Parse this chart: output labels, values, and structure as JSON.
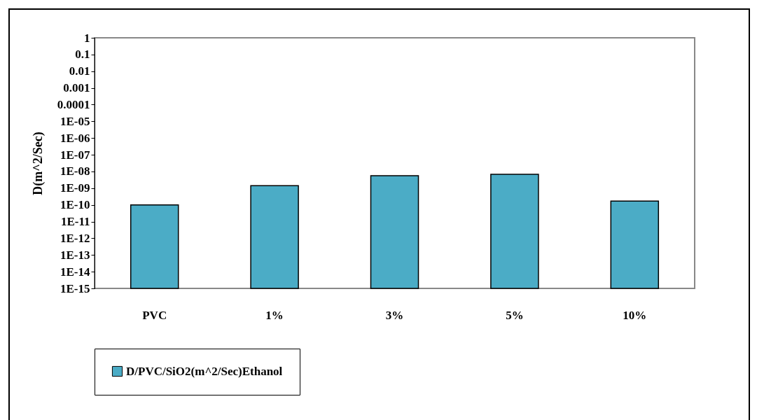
{
  "chart_data": {
    "type": "bar",
    "ylabel": "D(m^2/Sec)",
    "categories": [
      "PVC",
      "1%",
      "3%",
      "5%",
      "10%"
    ],
    "series": [
      {
        "name": "D/PVC/SiO2(m^2/Sec)Ethanol",
        "color": "#4bacc6",
        "values": [
          1e-10,
          1.4e-09,
          5.6e-09,
          6.8e-09,
          1.7e-10
        ]
      }
    ],
    "log": true,
    "ylim": [
      1e-15,
      1
    ],
    "yticks": [
      1,
      0.1,
      0.01,
      0.001,
      0.0001,
      {
        "value": 1e-05,
        "label": "1E-05"
      },
      {
        "value": 1e-06,
        "label": "1E-06"
      },
      {
        "value": 1e-07,
        "label": "1E-07"
      },
      {
        "value": 1e-08,
        "label": "1E-08"
      },
      {
        "value": 1e-09,
        "label": "1E-09"
      },
      {
        "value": 1e-10,
        "label": "1E-10"
      },
      {
        "value": 1e-11,
        "label": "1E-11"
      },
      {
        "value": 1e-12,
        "label": "1E-12"
      },
      {
        "value": 1e-13,
        "label": "1E-13"
      },
      {
        "value": 1e-14,
        "label": "1E-14"
      },
      {
        "value": 1e-15,
        "label": "1E-15"
      }
    ],
    "grid": false,
    "legend": "bottom"
  }
}
